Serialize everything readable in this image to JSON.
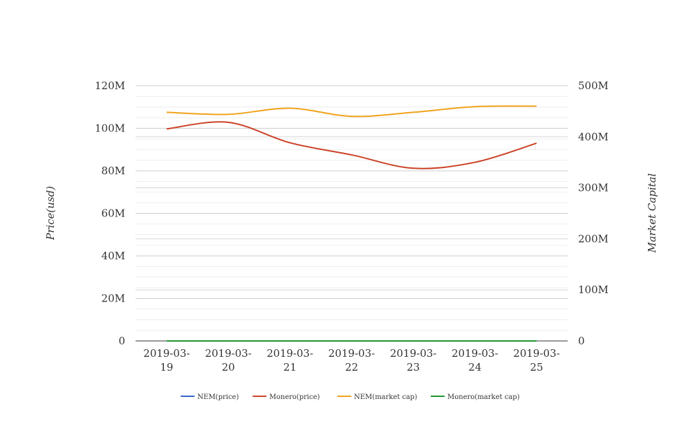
{
  "chart_data": {
    "type": "line",
    "categories": [
      "2019-03-19",
      "2019-03-20",
      "2019-03-21",
      "2019-03-22",
      "2019-03-23",
      "2019-03-24",
      "2019-03-25"
    ],
    "x_tick_labels": [
      [
        "2019-03-",
        "19"
      ],
      [
        "2019-03-",
        "20"
      ],
      [
        "2019-03-",
        "21"
      ],
      [
        "2019-03-",
        "22"
      ],
      [
        "2019-03-",
        "23"
      ],
      [
        "2019-03-",
        "24"
      ],
      [
        "2019-03-",
        "25"
      ]
    ],
    "left_axis": {
      "label": "Price(usd)",
      "ylim": [
        0,
        120000000
      ],
      "ticks": [
        0,
        20000000,
        40000000,
        60000000,
        80000000,
        100000000,
        120000000
      ],
      "tick_labels": [
        "0",
        "20M",
        "40M",
        "60M",
        "80M",
        "100M",
        "120M"
      ]
    },
    "right_axis": {
      "label": "Market Capital",
      "ylim": [
        0,
        500000000
      ],
      "ticks": [
        0,
        100000000,
        200000000,
        300000000,
        400000000,
        500000000
      ],
      "tick_labels": [
        "0",
        "100M",
        "200M",
        "300M",
        "400M",
        "500M"
      ]
    },
    "grid": true,
    "legend_position": "bottom",
    "series": [
      {
        "name": "NEM(price)",
        "axis": "left",
        "color": "#3366cc",
        "values": [
          0.05,
          0.05,
          0.05,
          0.05,
          0.05,
          0.05,
          0.05
        ]
      },
      {
        "name": "Monero(price)",
        "axis": "left",
        "color": "#cc4125",
        "values": [
          99700000,
          102800000,
          93200000,
          87500000,
          81200000,
          84000000,
          93000000
        ]
      },
      {
        "name": "NEM(market cap)",
        "axis": "right",
        "color": "#f1a21a",
        "values": [
          448000000,
          444000000,
          456000000,
          440000000,
          448000000,
          459000000,
          460000000
        ]
      },
      {
        "name": "Monero(market cap)",
        "axis": "left",
        "color": "#1e9630",
        "values": [
          0,
          0,
          0,
          0,
          0,
          0,
          0
        ]
      }
    ]
  }
}
